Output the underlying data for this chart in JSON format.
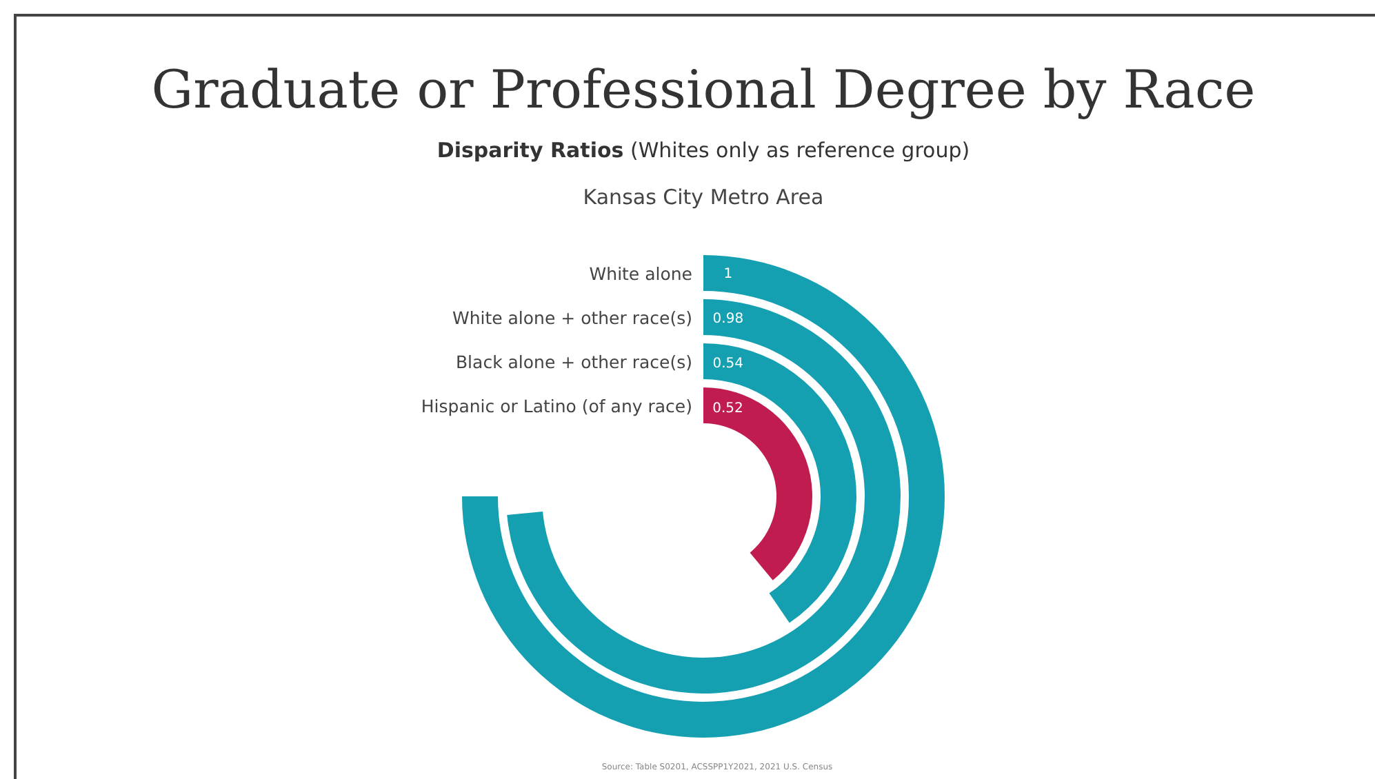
{
  "chart_data": {
    "type": "other",
    "title": "Graduate or Professional Degree by Race",
    "subtitle": "Disparity Ratios (Whites only as reference group)",
    "xlabel": "Kansas City Metro Area",
    "categories": [
      "White alone",
      "White alone + other race(s)",
      "Black alone + other race(s)",
      "Hispanic or Latino (of any race)"
    ],
    "values": [
      1,
      0.98,
      0.54,
      0.52
    ],
    "colors": [
      "#15a0b1",
      "#15a0b1",
      "#15a0b1",
      "#c11c4f"
    ],
    "data_labels": true,
    "annotations": [
      "Source: Table S0201, ACSSPP1Y2021, 2021 U.S. Census"
    ]
  }
}
